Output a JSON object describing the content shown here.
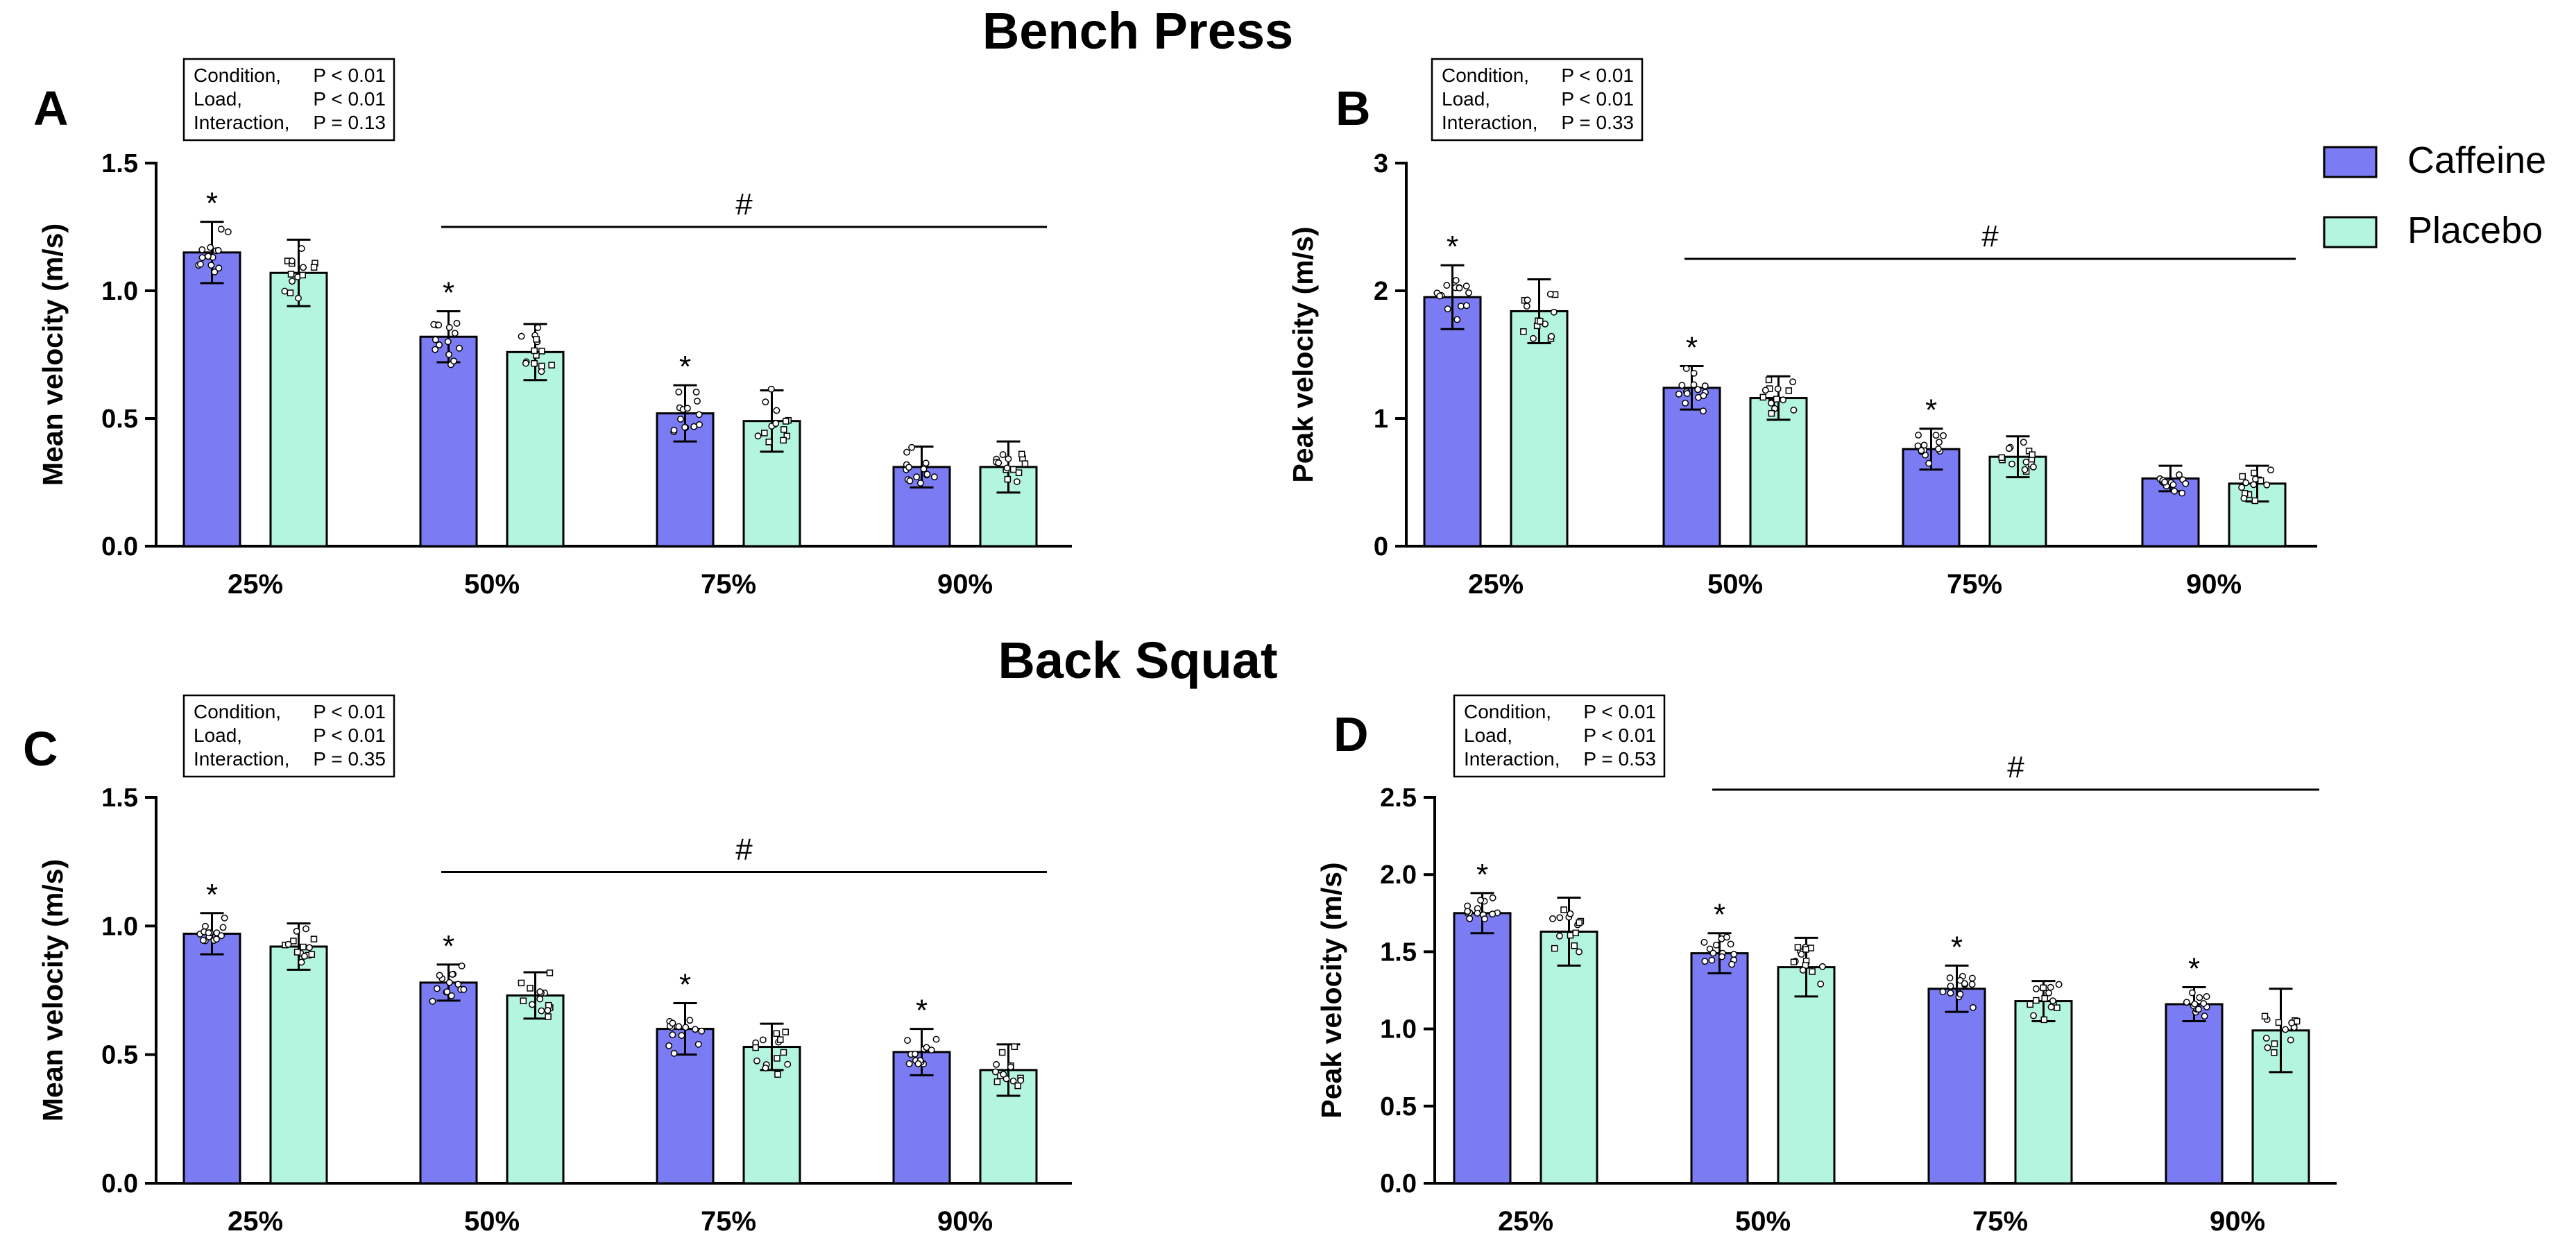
{
  "figure": {
    "title_top": "Bench Press",
    "title_bottom": "Back Squat",
    "colors": {
      "caffeine": "#7b7cf4",
      "placebo": "#b3f5df",
      "axis": "#000000"
    },
    "legend": [
      {
        "label": "Caffeine",
        "color": "#7b7cf4"
      },
      {
        "label": "Placebo",
        "color": "#b3f5df"
      }
    ]
  },
  "chart_data": [
    {
      "panel": "A",
      "type": "bar",
      "section": "Bench Press",
      "ylabel": "Mean velocity (m/s)",
      "ylim": [
        0,
        1.5
      ],
      "yticks": [
        0.0,
        0.5,
        1.0,
        1.5
      ],
      "ytick_labels": [
        "0.0",
        "0.5",
        "1.0",
        "1.5"
      ],
      "categories": [
        "25%",
        "50%",
        "75%",
        "90%"
      ],
      "series": [
        {
          "name": "Caffeine",
          "values": [
            1.15,
            0.82,
            0.52,
            0.31
          ],
          "sd": [
            0.12,
            0.1,
            0.11,
            0.08
          ]
        },
        {
          "name": "Placebo",
          "values": [
            1.07,
            0.76,
            0.49,
            0.31
          ],
          "sd": [
            0.13,
            0.11,
            0.12,
            0.1
          ]
        }
      ],
      "asterisk_on": [
        "25%",
        "50%",
        "75%"
      ],
      "stats": [
        {
          "name": "Condition,",
          "value": "P < 0.01"
        },
        {
          "name": "Load,",
          "value": "P < 0.01"
        },
        {
          "name": "Interaction,",
          "value": "P = 0.13"
        }
      ],
      "hash_symbol": "#",
      "hash_line_y": 1.25,
      "hash_span": [
        "50%",
        "90%"
      ]
    },
    {
      "panel": "B",
      "type": "bar",
      "section": "Bench Press",
      "ylabel": "Peak velocity (m/s)",
      "ylim": [
        0,
        3
      ],
      "yticks": [
        0,
        1,
        2,
        3
      ],
      "ytick_labels": [
        "0",
        "1",
        "2",
        "3"
      ],
      "categories": [
        "25%",
        "50%",
        "75%",
        "90%"
      ],
      "series": [
        {
          "name": "Caffeine",
          "values": [
            1.95,
            1.24,
            0.76,
            0.53
          ],
          "sd": [
            0.25,
            0.17,
            0.16,
            0.1
          ]
        },
        {
          "name": "Placebo",
          "values": [
            1.84,
            1.16,
            0.7,
            0.49
          ],
          "sd": [
            0.25,
            0.17,
            0.16,
            0.14
          ]
        }
      ],
      "asterisk_on": [
        "25%",
        "50%",
        "75%"
      ],
      "stats": [
        {
          "name": "Condition,",
          "value": "P < 0.01"
        },
        {
          "name": "Load,",
          "value": "P < 0.01"
        },
        {
          "name": "Interaction,",
          "value": "P = 0.33"
        }
      ],
      "hash_symbol": "#",
      "hash_line_y": 2.25,
      "hash_span": [
        "50%",
        "90%"
      ]
    },
    {
      "panel": "C",
      "type": "bar",
      "section": "Back Squat",
      "ylabel": "Mean velocity (m/s)",
      "ylim": [
        0,
        1.5
      ],
      "yticks": [
        0.0,
        0.5,
        1.0,
        1.5
      ],
      "ytick_labels": [
        "0.0",
        "0.5",
        "1.0",
        "1.5"
      ],
      "categories": [
        "25%",
        "50%",
        "75%",
        "90%"
      ],
      "series": [
        {
          "name": "Caffeine",
          "values": [
            0.97,
            0.78,
            0.6,
            0.51
          ],
          "sd": [
            0.08,
            0.07,
            0.1,
            0.09
          ]
        },
        {
          "name": "Placebo",
          "values": [
            0.92,
            0.73,
            0.53,
            0.44
          ],
          "sd": [
            0.09,
            0.09,
            0.09,
            0.1
          ]
        }
      ],
      "asterisk_on": [
        "25%",
        "50%",
        "75%",
        "90%"
      ],
      "stats": [
        {
          "name": "Condition,",
          "value": "P < 0.01"
        },
        {
          "name": "Load,",
          "value": "P < 0.01"
        },
        {
          "name": "Interaction,",
          "value": "P = 0.35"
        }
      ],
      "hash_symbol": "#",
      "hash_line_y": 1.21,
      "hash_span": [
        "50%",
        "90%"
      ]
    },
    {
      "panel": "D",
      "type": "bar",
      "section": "Back Squat",
      "ylabel": "Peak velocity (m/s)",
      "ylim": [
        0,
        2.5
      ],
      "yticks": [
        0.0,
        0.5,
        1.0,
        1.5,
        2.0,
        2.5
      ],
      "ytick_labels": [
        "0.0",
        "0.5",
        "1.0",
        "1.5",
        "2.0",
        "2.5"
      ],
      "categories": [
        "25%",
        "50%",
        "75%",
        "90%"
      ],
      "series": [
        {
          "name": "Caffeine",
          "values": [
            1.75,
            1.49,
            1.26,
            1.16
          ],
          "sd": [
            0.13,
            0.13,
            0.15,
            0.11
          ]
        },
        {
          "name": "Placebo",
          "values": [
            1.63,
            1.4,
            1.18,
            0.99
          ],
          "sd": [
            0.22,
            0.19,
            0.13,
            0.27
          ]
        }
      ],
      "asterisk_on": [
        "25%",
        "50%",
        "75%",
        "90%"
      ],
      "stats": [
        {
          "name": "Condition,",
          "value": "P < 0.01"
        },
        {
          "name": "Load,",
          "value": "P < 0.01"
        },
        {
          "name": "Interaction,",
          "value": "P = 0.53"
        }
      ],
      "hash_symbol": "#",
      "hash_line_y": 2.55,
      "hash_span": [
        "50%",
        "90%"
      ]
    }
  ]
}
